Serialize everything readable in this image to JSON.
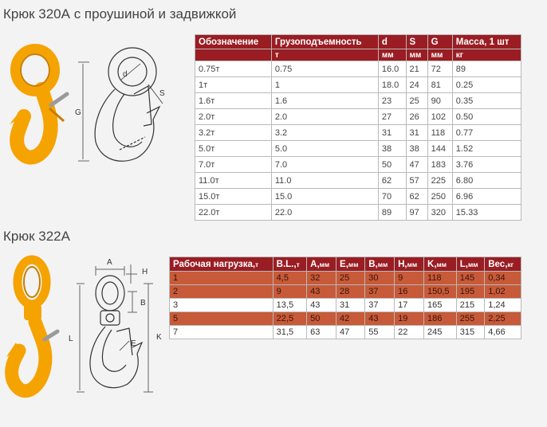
{
  "section1": {
    "title": "Крюк 320А с проушиной и задвижкой",
    "figure_labels": {
      "d": "d",
      "S": "S",
      "G": "G"
    },
    "table": {
      "headers": [
        "Обозначение",
        "Грузоподъемность",
        "d",
        "S",
        "G",
        "Масса, 1 шт"
      ],
      "units": [
        "",
        "т",
        "мм",
        "мм",
        "мм",
        "кг"
      ],
      "rows": [
        [
          "0.75т",
          "0.75",
          "16.0",
          "21",
          "72",
          "89"
        ],
        [
          "1т",
          "1",
          "18.0",
          "24",
          "81",
          "0.25"
        ],
        [
          "1.6т",
          "1.6",
          "23",
          "25",
          "90",
          "0.35"
        ],
        [
          "2.0т",
          "2.0",
          "27",
          "26",
          "102",
          "0.50"
        ],
        [
          "3.2т",
          "3.2",
          "31",
          "31",
          "118",
          "0.77"
        ],
        [
          "5.0т",
          "5.0",
          "38",
          "38",
          "144",
          "1.52"
        ],
        [
          "7.0т",
          "7.0",
          "50",
          "47",
          "183",
          "3.76"
        ],
        [
          "11.0т",
          "11.0",
          "62",
          "57",
          "225",
          "6.80"
        ],
        [
          "15.0т",
          "15.0",
          "70",
          "62",
          "250",
          "6.96"
        ],
        [
          "22.0т",
          "22.0",
          "89",
          "97",
          "320",
          "15.33"
        ]
      ]
    }
  },
  "section2": {
    "title": "Крюк 322А",
    "figure_labels": {
      "A": "A",
      "H": "H",
      "B": "B",
      "E": "E",
      "L": "L",
      "K": "K"
    },
    "table": {
      "headers": [
        {
          "label": "Рабочая нагрузка,",
          "unit": "т"
        },
        {
          "label": "B.L.,",
          "unit": "т"
        },
        {
          "label": "A,",
          "unit": "мм"
        },
        {
          "label": "E,",
          "unit": "мм"
        },
        {
          "label": "B,",
          "unit": "мм"
        },
        {
          "label": "H,",
          "unit": "мм"
        },
        {
          "label": "K,",
          "unit": "мм"
        },
        {
          "label": "L,",
          "unit": "мм"
        },
        {
          "label": "Вес,",
          "unit": "кг"
        }
      ],
      "rows": [
        [
          "1",
          "4,5",
          "32",
          "25",
          "30",
          "9",
          "118",
          "145",
          "0,34"
        ],
        [
          "2",
          "9",
          "43",
          "28",
          "37",
          "16",
          "150,5",
          "195",
          "1,02"
        ],
        [
          "3",
          "13,5",
          "43",
          "31",
          "37",
          "17",
          "165",
          "215",
          "1,24"
        ],
        [
          "5",
          "22,5",
          "50",
          "42",
          "43",
          "19",
          "186",
          "255",
          "2,25"
        ],
        [
          "7",
          "31,5",
          "63",
          "47",
          "55",
          "22",
          "245",
          "315",
          "4,66"
        ]
      ],
      "highlight_rows": [
        0,
        1,
        3
      ],
      "colors": {
        "header": "#9a1d23",
        "highlight": "#c75a39"
      }
    }
  },
  "colors": {
    "hook_yellow": "#f5a300",
    "hook_dark": "#c77d00"
  }
}
